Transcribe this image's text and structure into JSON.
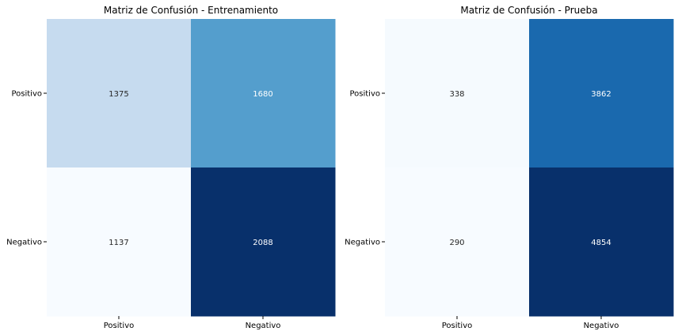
{
  "chart_data": [
    {
      "type": "heatmap",
      "title": "Matriz de Confusión - Entrenamiento",
      "x_categories": [
        "Positivo",
        "Negativo"
      ],
      "y_categories": [
        "Positivo",
        "Negativo"
      ],
      "values": [
        [
          1375,
          1680
        ],
        [
          1137,
          2088
        ]
      ],
      "colormap": "Blues",
      "colorbar": false
    },
    {
      "type": "heatmap",
      "title": "Matriz de Confusión - Prueba",
      "x_categories": [
        "Positivo",
        "Negativo"
      ],
      "y_categories": [
        "Positivo",
        "Negativo"
      ],
      "values": [
        [
          338,
          3862
        ],
        [
          290,
          4854
        ]
      ],
      "colormap": "Blues",
      "colorbar": false
    }
  ]
}
